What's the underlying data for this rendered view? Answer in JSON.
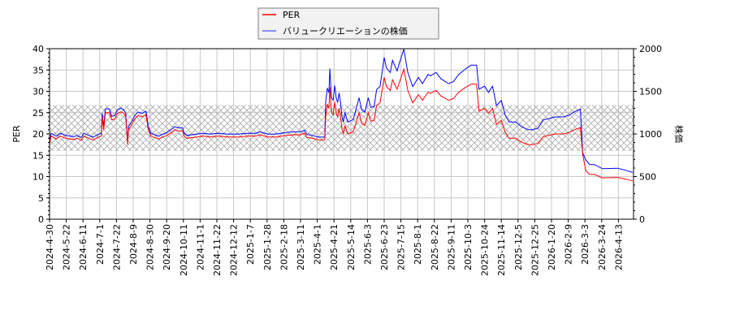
{
  "chart_data": {
    "type": "line",
    "title": "",
    "xlabel": "",
    "ylabel_left": "PER",
    "ylabel_right": "株価",
    "ylim_left": [
      0,
      40
    ],
    "ylim_right": [
      0,
      2000
    ],
    "yticks_left": [
      0,
      5,
      10,
      15,
      20,
      25,
      30,
      35,
      40
    ],
    "yticks_right": [
      0,
      500,
      1000,
      1500,
      2000
    ],
    "grid": true,
    "legend_position": "top-center",
    "band_left_axis": [
      16,
      26.8
    ],
    "xticks": [
      "2024-4-30",
      "2024-5-22",
      "2024-6-11",
      "2024-7-1",
      "2024-7-22",
      "2024-8-9",
      "2024-8-30",
      "2024-9-20",
      "2024-10-11",
      "2024-11-1",
      "2024-11-22",
      "2024-12-12",
      "2025-1-7",
      "2025-1-28",
      "2025-2-18",
      "2025-3-11",
      "2025-4-1",
      "2025-4-21",
      "2025-5-14",
      "2025-6-3",
      "2025-6-23",
      "2025-7-15",
      "2025-8-1",
      "2025-8-22",
      "2025-9-11",
      "2025-10-3",
      "2025-10-24",
      "2025-11-14",
      "2025-12-5",
      "2025-12-25",
      "2026-1-20",
      "2026-2-9",
      "2026-3-3",
      "2026-3-24",
      "2026-4-13"
    ],
    "x": [
      "2024-4-30",
      "2024-5-2",
      "2024-5-9",
      "2024-5-14",
      "2024-5-21",
      "2024-5-31",
      "2024-6-4",
      "2024-6-9",
      "2024-6-12",
      "2024-6-18",
      "2024-6-23",
      "2024-6-30",
      "2024-7-3",
      "2024-7-4",
      "2024-7-6",
      "2024-7-8",
      "2024-7-13",
      "2024-7-16",
      "2024-7-20",
      "2024-7-23",
      "2024-7-27",
      "2024-7-30",
      "2024-8-1",
      "2024-8-3",
      "2024-8-4",
      "2024-8-7",
      "2024-8-11",
      "2024-8-15",
      "2024-8-20",
      "2024-8-25",
      "2024-8-28",
      "2024-8-31",
      "2024-9-4",
      "2024-9-10",
      "2024-9-14",
      "2024-9-20",
      "2024-9-27",
      "2024-9-30",
      "2024-10-5",
      "2024-10-10",
      "2024-10-12",
      "2024-10-15",
      "2024-10-25",
      "2024-11-4",
      "2024-11-14",
      "2024-11-24",
      "2024-12-4",
      "2024-12-20",
      "2025-1-4",
      "2025-1-14",
      "2025-1-19",
      "2025-1-29",
      "2025-2-8",
      "2025-2-19",
      "2025-3-1",
      "2025-3-11",
      "2025-3-16",
      "2025-3-19",
      "2025-3-26",
      "2025-4-2",
      "2025-4-10",
      "2025-4-11",
      "2025-4-13",
      "2025-4-15",
      "2025-4-16",
      "2025-4-18",
      "2025-4-20",
      "2025-4-22",
      "2025-4-24",
      "2025-4-26",
      "2025-4-28",
      "2025-4-30",
      "2025-5-2",
      "2025-5-4",
      "2025-5-6",
      "2025-5-8",
      "2025-5-10",
      "2025-5-17",
      "2025-5-21",
      "2025-5-24",
      "2025-5-27",
      "2025-5-31",
      "2025-6-4",
      "2025-6-7",
      "2025-6-11",
      "2025-6-14",
      "2025-6-18",
      "2025-6-23",
      "2025-6-26",
      "2025-7-1",
      "2025-7-4",
      "2025-7-10",
      "2025-7-13",
      "2025-7-18",
      "2025-7-22",
      "2025-7-27",
      "2025-8-2",
      "2025-8-7",
      "2025-8-14",
      "2025-8-17",
      "2025-8-24",
      "2025-8-30",
      "2025-9-8",
      "2025-9-14",
      "2025-9-21",
      "2025-9-29",
      "2025-10-7",
      "2025-10-14",
      "2025-10-17",
      "2025-10-24",
      "2025-10-29",
      "2025-11-3",
      "2025-11-8",
      "2025-11-14",
      "2025-11-19",
      "2025-11-24",
      "2025-12-2",
      "2025-12-9",
      "2025-12-17",
      "2025-12-22",
      "2025-12-30",
      "2026-1-7",
      "2026-1-17",
      "2026-1-24",
      "2026-2-3",
      "2026-2-10",
      "2026-2-17",
      "2026-2-25",
      "2026-2-28",
      "2026-3-4",
      "2026-3-9",
      "2026-3-15",
      "2026-3-25",
      "2026-4-12",
      "2026-4-22",
      "2026-4-30"
    ],
    "series": [
      {
        "name": "PER",
        "axis": "left",
        "color": "#ff0000",
        "values": [
          17.5,
          19.5,
          18.8,
          19.5,
          19,
          18.7,
          19,
          18.5,
          19.5,
          19,
          18.6,
          19.3,
          19.5,
          24,
          21,
          25,
          25,
          23.3,
          23.5,
          24.8,
          25.2,
          24.8,
          24,
          17.5,
          21,
          22,
          23.5,
          24.3,
          24,
          24.5,
          21,
          19.5,
          19.2,
          18.8,
          19.2,
          19.6,
          20.5,
          21,
          20.7,
          20.7,
          19.5,
          19,
          19.2,
          19.5,
          19.3,
          19.5,
          19.3,
          19.3,
          19.5,
          19.5,
          19.8,
          19.3,
          19.3,
          19.6,
          19.8,
          19.8,
          20.2,
          19.2,
          19,
          18.6,
          18.6,
          24,
          27,
          26,
          31,
          25,
          24.5,
          27.5,
          25,
          24,
          26,
          24,
          21,
          20,
          22,
          21,
          20,
          20.5,
          23,
          25,
          22.5,
          22,
          25,
          23,
          23.2,
          26.7,
          27.3,
          33.3,
          31.1,
          30.2,
          32.7,
          30.5,
          32.1,
          35.2,
          30.2,
          27.3,
          29.2,
          27.9,
          29.8,
          29.5,
          30.2,
          28.9,
          27.9,
          28.3,
          29.8,
          30.8,
          31.7,
          31.7,
          25.4,
          26,
          24.8,
          26,
          22.2,
          23.2,
          20.3,
          19,
          19,
          18.1,
          17.5,
          17.5,
          17.8,
          19.4,
          19.7,
          20,
          20,
          20.3,
          21,
          21.5,
          15.2,
          11.4,
          10.5,
          10.5,
          9.7,
          9.8,
          9.4,
          9.0
        ]
      },
      {
        "name": "バリュークリエーションの株価",
        "axis": "right",
        "color": "#0000ff",
        "values": [
          906,
          1009,
          973,
          1009,
          983,
          968,
          983,
          957,
          1009,
          983,
          963,
          999,
          1009,
          1242,
          1087,
          1294,
          1294,
          1206,
          1216,
          1283,
          1304,
          1283,
          1242,
          906,
          1087,
          1139,
          1216,
          1258,
          1242,
          1268,
          1087,
          1009,
          994,
          973,
          994,
          1014,
          1061,
          1087,
          1071,
          1071,
          1009,
          983,
          994,
          1009,
          999,
          1009,
          999,
          999,
          1009,
          1009,
          1025,
          999,
          999,
          1014,
          1025,
          1025,
          1045,
          994,
          983,
          963,
          963,
          1368,
          1539,
          1482,
          1767,
          1425,
          1397,
          1568,
          1425,
          1368,
          1482,
          1368,
          1197,
          1140,
          1254,
          1197,
          1140,
          1169,
          1311,
          1425,
          1283,
          1254,
          1425,
          1311,
          1322,
          1522,
          1556,
          1898,
          1773,
          1721,
          1864,
          1739,
          1830,
          1995,
          1721,
          1556,
          1664,
          1590,
          1699,
          1682,
          1721,
          1647,
          1590,
          1613,
          1699,
          1756,
          1807,
          1807,
          1524,
          1560,
          1488,
          1560,
          1332,
          1392,
          1218,
          1140,
          1140,
          1086,
          1050,
          1050,
          1068,
          1164,
          1182,
          1200,
          1200,
          1218,
          1260,
          1290,
          780,
          695,
          641,
          641,
          592,
          598,
          573,
          549
        ]
      }
    ]
  }
}
